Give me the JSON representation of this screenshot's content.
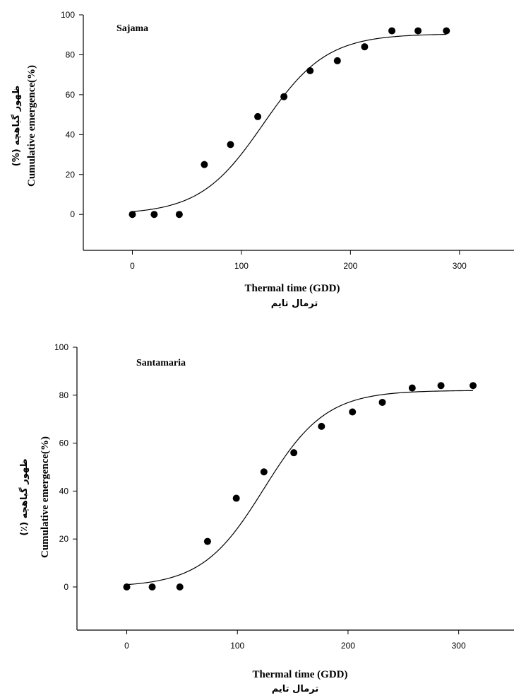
{
  "chart_data": [
    {
      "type": "scatter",
      "title": "Sajama",
      "xlabel": "Thermal time (GDD)",
      "xlabel_fa": "ترمال تایم",
      "ylabel": "Cumulative emergence(%)",
      "ylabel_fa": "ظهور گیاهچه (%)",
      "xlim": [
        -45,
        350
      ],
      "ylim": [
        -18,
        100
      ],
      "xticks": [
        0,
        100,
        200,
        300
      ],
      "yticks": [
        0,
        20,
        40,
        60,
        80,
        100
      ],
      "grid": false,
      "series": [
        {
          "kind": "points",
          "x": [
            0,
            20,
            43,
            66,
            90,
            115,
            139,
            163,
            188,
            213,
            238,
            262,
            288
          ],
          "y": [
            0,
            0,
            0,
            25,
            35,
            49,
            59,
            72,
            77,
            84,
            92,
            92,
            92
          ]
        },
        {
          "kind": "fitted-curve",
          "function": "sigmoid",
          "x_range": [
            0,
            288
          ],
          "asymptote": 90.5,
          "midpoint": 120,
          "slope": 29
        }
      ]
    },
    {
      "type": "scatter",
      "title": "Santamaria",
      "xlabel": "Thermal time (GDD)",
      "xlabel_fa": "ترمال تایم",
      "ylabel": "Cumulative emergence(%)",
      "ylabel_fa": "ظهور گیاهچه (٪)",
      "xlim": [
        -45,
        350
      ],
      "ylim": [
        -18,
        100
      ],
      "xticks": [
        0,
        100,
        200,
        300
      ],
      "yticks": [
        0,
        20,
        40,
        60,
        80,
        100
      ],
      "grid": false,
      "series": [
        {
          "kind": "points",
          "x": [
            0,
            23,
            48,
            73,
            99,
            124,
            151,
            176,
            204,
            231,
            258,
            284,
            313
          ],
          "y": [
            0,
            0,
            0,
            19,
            37,
            48,
            56,
            67,
            73,
            77,
            83,
            84,
            84
          ]
        },
        {
          "kind": "fitted-curve",
          "function": "sigmoid",
          "x_range": [
            0,
            313
          ],
          "asymptote": 82,
          "midpoint": 124,
          "slope": 28
        }
      ]
    }
  ]
}
